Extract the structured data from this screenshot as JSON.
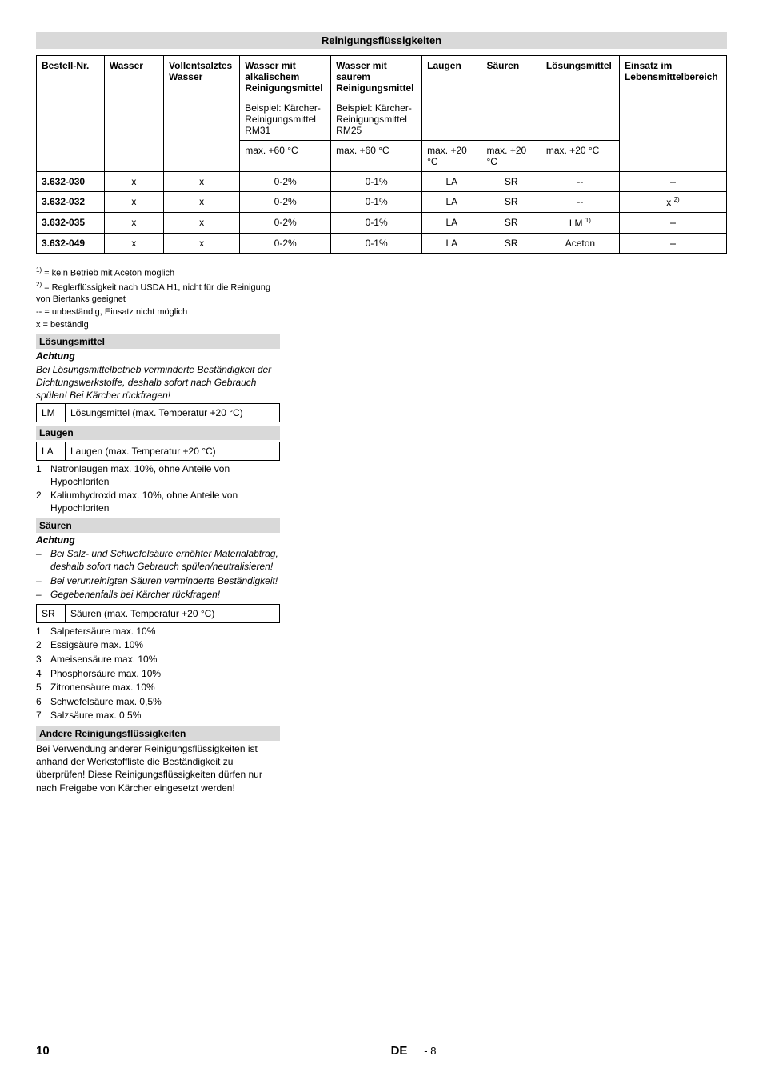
{
  "title": "Reinigungsflüssigkeiten",
  "table": {
    "headers": [
      "Bestell-Nr.",
      "Wasser",
      "Vollentsalztes Wasser",
      "Wasser mit alkalischem Reinigungsmittel",
      "Wasser mit saurem Reinigungsmittel",
      "Laugen",
      "Säuren",
      "Lösungsmittel",
      "Einsatz im Lebensmittelbereich"
    ],
    "sub1": [
      "",
      "",
      "",
      "Beispiel: Kärcher-Reinigungsmittel RM31",
      "Beispiel: Kärcher-Reinigungsmittel RM25",
      "",
      "",
      "",
      ""
    ],
    "sub2": [
      "",
      "",
      "",
      "max. +60 °C",
      "max. +60 °C",
      "max. +20 °C",
      "max. +20 °C",
      "max. +20 °C",
      ""
    ],
    "rows": [
      [
        "3.632-030",
        "x",
        "x",
        "0-2%",
        "0-1%",
        "LA",
        "SR",
        "--",
        "--"
      ],
      [
        "3.632-032",
        "x",
        "x",
        "0-2%",
        "0-1%",
        "LA",
        "SR",
        "--",
        "x 2)"
      ],
      [
        "3.632-035",
        "x",
        "x",
        "0-2%",
        "0-1%",
        "LA",
        "SR",
        "LM 1)",
        "--"
      ],
      [
        "3.632-049",
        "x",
        "x",
        "0-2%",
        "0-1%",
        "LA",
        "SR",
        "Aceton",
        "--"
      ]
    ]
  },
  "footnotes": [
    "1) = kein Betrieb mit Aceton möglich",
    "2) = Reglerflüssigkeit nach USDA H1, nicht für die Reinigung von Biertanks geeignet",
    "-- = unbeständig, Einsatz nicht möglich",
    "x = beständig"
  ],
  "lm": {
    "heading": "Lösungsmittel",
    "attention": "Achtung",
    "text": "Bei Lösungsmittelbetrieb verminderte Beständigkeit der Dichtungswerkstoffe, deshalb sofort nach Gebrauch spülen! Bei Kärcher rückfragen!",
    "code": "LM",
    "desc": "Lösungsmittel (max. Temperatur +20 °C)"
  },
  "la": {
    "heading": "Laugen",
    "code": "LA",
    "desc": "Laugen (max. Temperatur +20 °C)",
    "items": [
      "Natronlaugen max. 10%, ohne Anteile von Hypochloriten",
      "Kaliumhydroxid max. 10%, ohne Anteile von Hypochloriten"
    ]
  },
  "sr": {
    "heading": "Säuren",
    "attention": "Achtung",
    "warnings": [
      "Bei Salz- und Schwefelsäure erhöhter Materialabtrag, deshalb sofort nach Gebrauch spülen/neutralisieren!",
      "Bei verunreinigten Säuren verminderte Beständigkeit!",
      "Gegebenenfalls bei Kärcher rückfragen!"
    ],
    "code": "SR",
    "desc": "Säuren (max. Temperatur +20 °C)",
    "items": [
      "Salpetersäure max. 10%",
      "Essigsäure max. 10%",
      "Ameisensäure max. 10%",
      "Phosphorsäure max. 10%",
      "Zitronensäure max. 10%",
      "Schwefelsäure max. 0,5%",
      "Salzsäure max. 0,5%"
    ]
  },
  "other": {
    "heading": "Andere Reinigungsflüssigkeiten",
    "text": "Bei Verwendung anderer Reinigungsflüssigkeiten ist anhand der Werkstoffliste die Beständigkeit zu überprüfen! Diese Reinigungsflüssigkeiten dürfen nur nach Freigabe von Kärcher eingesetzt werden!"
  },
  "footer": {
    "page_left": "10",
    "lang": "DE",
    "page_sub": "- 8"
  }
}
